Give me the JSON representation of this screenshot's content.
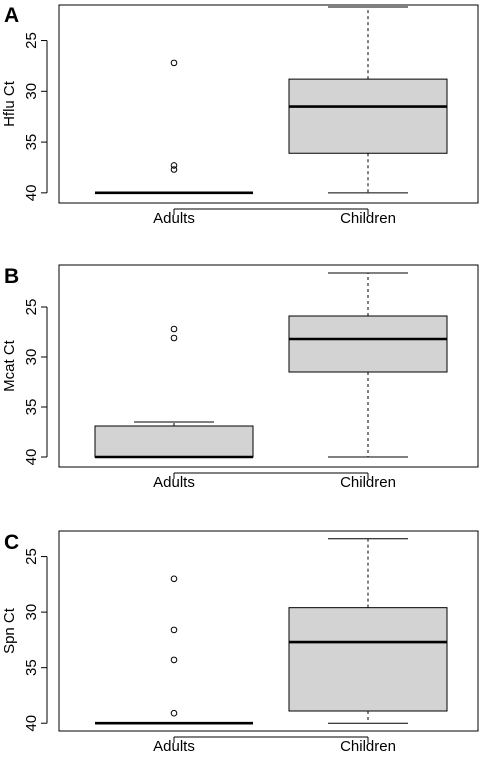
{
  "chart_data": [
    {
      "type": "box",
      "panel": "A",
      "ylabel": "Hflu Ct",
      "y_axis": "reversed",
      "ylim": [
        41,
        21.5
      ],
      "yticks": [
        25,
        30,
        35,
        40
      ],
      "categories": [
        "Adults",
        "Children"
      ],
      "boxes": [
        {
          "category": "Adults",
          "q1": 40,
          "median": 40,
          "q3": 40,
          "whisker_low": 40,
          "whisker_high": 40,
          "outliers": [
            27.2,
            37.3,
            37.7
          ]
        },
        {
          "category": "Children",
          "q1": 28.8,
          "median": 31.5,
          "q3": 36.1,
          "whisker_low": 21.7,
          "whisker_high": 40
        }
      ],
      "fill_color": "#d3d3d3"
    },
    {
      "type": "box",
      "panel": "B",
      "ylabel": "Mcat Ct",
      "y_axis": "reversed",
      "ylim": [
        41,
        20.8
      ],
      "yticks": [
        25,
        30,
        35,
        40
      ],
      "categories": [
        "Adults",
        "Children"
      ],
      "boxes": [
        {
          "category": "Adults",
          "q1": 36.9,
          "median": 40,
          "q3": 40,
          "whisker_low": 36.5,
          "whisker_high": 40,
          "outliers": [
            27.2,
            28.1
          ]
        },
        {
          "category": "Children",
          "q1": 25.9,
          "median": 28.2,
          "q3": 31.5,
          "whisker_low": 21.6,
          "whisker_high": 40
        }
      ],
      "fill_color": "#d3d3d3"
    },
    {
      "type": "box",
      "panel": "C",
      "ylabel": "Spn Ct",
      "y_axis": "reversed",
      "ylim": [
        40.7,
        22.7
      ],
      "yticks": [
        25,
        30,
        35,
        40
      ],
      "categories": [
        "Adults",
        "Children"
      ],
      "boxes": [
        {
          "category": "Adults",
          "q1": 40,
          "median": 40,
          "q3": 40,
          "whisker_low": 40,
          "whisker_high": 40,
          "outliers": [
            27.0,
            31.6,
            34.3,
            39.1
          ]
        },
        {
          "category": "Children",
          "q1": 29.6,
          "median": 32.7,
          "q3": 38.9,
          "whisker_low": 23.4,
          "whisker_high": 40
        }
      ],
      "fill_color": "#d3d3d3"
    }
  ]
}
